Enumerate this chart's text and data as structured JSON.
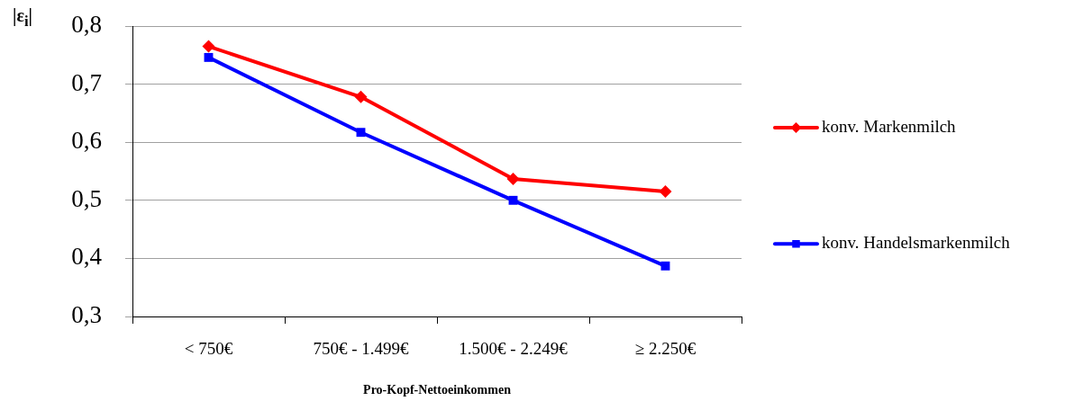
{
  "chart_data": {
    "type": "line",
    "ylabel": "|ε$_{i}$|",
    "xlabel": "Pro-Kopf-Nettoeinkommen",
    "categories": [
      "< 750€",
      "750€ - 1.499€",
      "1.500€ - 2.249€",
      "≥ 2.250€"
    ],
    "series": [
      {
        "name": "konv. Markenmilch",
        "color": "#ff0000",
        "marker": "diamond",
        "values": [
          0.765,
          0.678,
          0.537,
          0.515
        ]
      },
      {
        "name": "konv. Handelsmarkenmilch",
        "color": "#0000ff",
        "marker": "square",
        "values": [
          0.746,
          0.617,
          0.5,
          0.387
        ]
      }
    ],
    "ylim": [
      0.3,
      0.8
    ],
    "yticks": [
      {
        "value": 0.3,
        "label": "0,3"
      },
      {
        "value": 0.4,
        "label": "0,4"
      },
      {
        "value": 0.5,
        "label": "0,5"
      },
      {
        "value": 0.6,
        "label": "0,6"
      },
      {
        "value": 0.7,
        "label": "0,7"
      },
      {
        "value": 0.8,
        "label": "0,8"
      }
    ],
    "grid": "y",
    "legend": "right"
  }
}
